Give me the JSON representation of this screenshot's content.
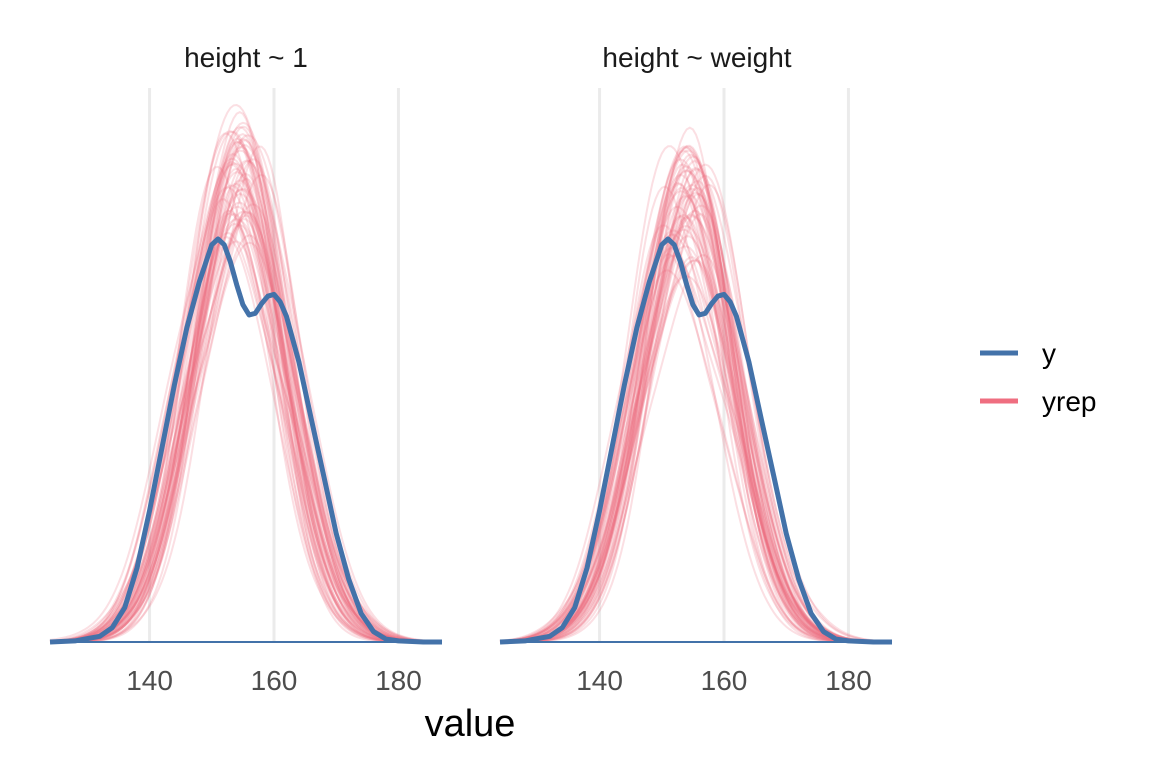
{
  "chart_data": {
    "type": "line",
    "xlabel": "value",
    "ylabel": "",
    "xlim": [
      124,
      187
    ],
    "x_ticks": [
      140,
      160,
      180
    ],
    "grid": "vertical major lines",
    "legend_position": "right",
    "legend": [
      {
        "label": "y",
        "color": "#4372a9"
      },
      {
        "label": "yrep",
        "color": "#ef6e80"
      }
    ],
    "colors": {
      "y": "#4372a9",
      "yrep": "#ef6e80",
      "grid": "#ebebeb"
    },
    "panels": [
      {
        "title": "height ~ 1",
        "y_density": {
          "x": [
            124,
            128,
            132,
            134,
            136,
            138,
            140,
            142,
            144,
            146,
            148,
            150,
            151,
            152,
            153,
            154,
            155,
            156,
            157,
            158,
            159,
            160,
            161,
            162,
            164,
            166,
            168,
            170,
            172,
            174,
            176,
            178,
            180,
            184,
            187
          ],
          "y": [
            0,
            0.0002,
            0.001,
            0.0025,
            0.006,
            0.013,
            0.023,
            0.034,
            0.045,
            0.055,
            0.063,
            0.0695,
            0.0705,
            0.0695,
            0.0665,
            0.0625,
            0.059,
            0.0572,
            0.0575,
            0.0592,
            0.0605,
            0.0608,
            0.0595,
            0.057,
            0.049,
            0.039,
            0.029,
            0.019,
            0.011,
            0.005,
            0.0018,
            0.0005,
            0.0002,
            0,
            0
          ]
        },
        "yrep_center_x": 154.2,
        "yrep_sd": 7.7,
        "yrep_peak_density": 0.084
      },
      {
        "title": "height ~ weight",
        "y_density": {
          "x": [
            124,
            128,
            132,
            134,
            136,
            138,
            140,
            142,
            144,
            146,
            148,
            150,
            151,
            152,
            153,
            154,
            155,
            156,
            157,
            158,
            159,
            160,
            161,
            162,
            164,
            166,
            168,
            170,
            172,
            174,
            176,
            178,
            180,
            184,
            187
          ],
          "y": [
            0,
            0.0002,
            0.001,
            0.0025,
            0.006,
            0.013,
            0.023,
            0.034,
            0.045,
            0.055,
            0.063,
            0.0695,
            0.0705,
            0.0695,
            0.0665,
            0.0625,
            0.059,
            0.0572,
            0.0575,
            0.0592,
            0.0605,
            0.0608,
            0.0595,
            0.057,
            0.049,
            0.039,
            0.029,
            0.019,
            0.011,
            0.005,
            0.0018,
            0.0005,
            0.0002,
            0,
            0
          ]
        },
        "yrep_center_x": 154.0,
        "yrep_sd": 7.7,
        "yrep_peak_density": 0.078
      }
    ]
  }
}
